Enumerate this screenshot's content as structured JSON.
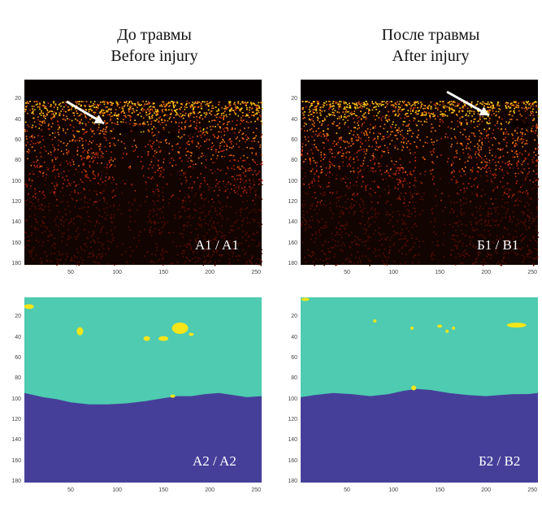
{
  "columns": [
    {
      "title_ru": "До травмы",
      "title_en": "Before injury"
    },
    {
      "title_ru": "После травмы",
      "title_en": "After injury"
    }
  ],
  "panels": [
    {
      "label": "A1 / A1",
      "kind": "oct"
    },
    {
      "label": "Б1 / B1",
      "kind": "oct"
    },
    {
      "label": "A2 / A2",
      "kind": "segmentation"
    },
    {
      "label": "Б2 / B2",
      "kind": "segmentation"
    }
  ],
  "axes": {
    "y_ticks": [
      "20",
      "40",
      "60",
      "80",
      "100",
      "120",
      "140",
      "160",
      "180"
    ],
    "x_ticks": [
      "50",
      "100",
      "150",
      "200",
      "250"
    ]
  },
  "colors": {
    "seg_upper": "#4ecbb0",
    "seg_lower": "#463f9a",
    "seg_highlight": "#f5e51a",
    "oct_dark": "#120400",
    "oct_hot": "#ffd21a",
    "arrow": "#ffffff"
  }
}
